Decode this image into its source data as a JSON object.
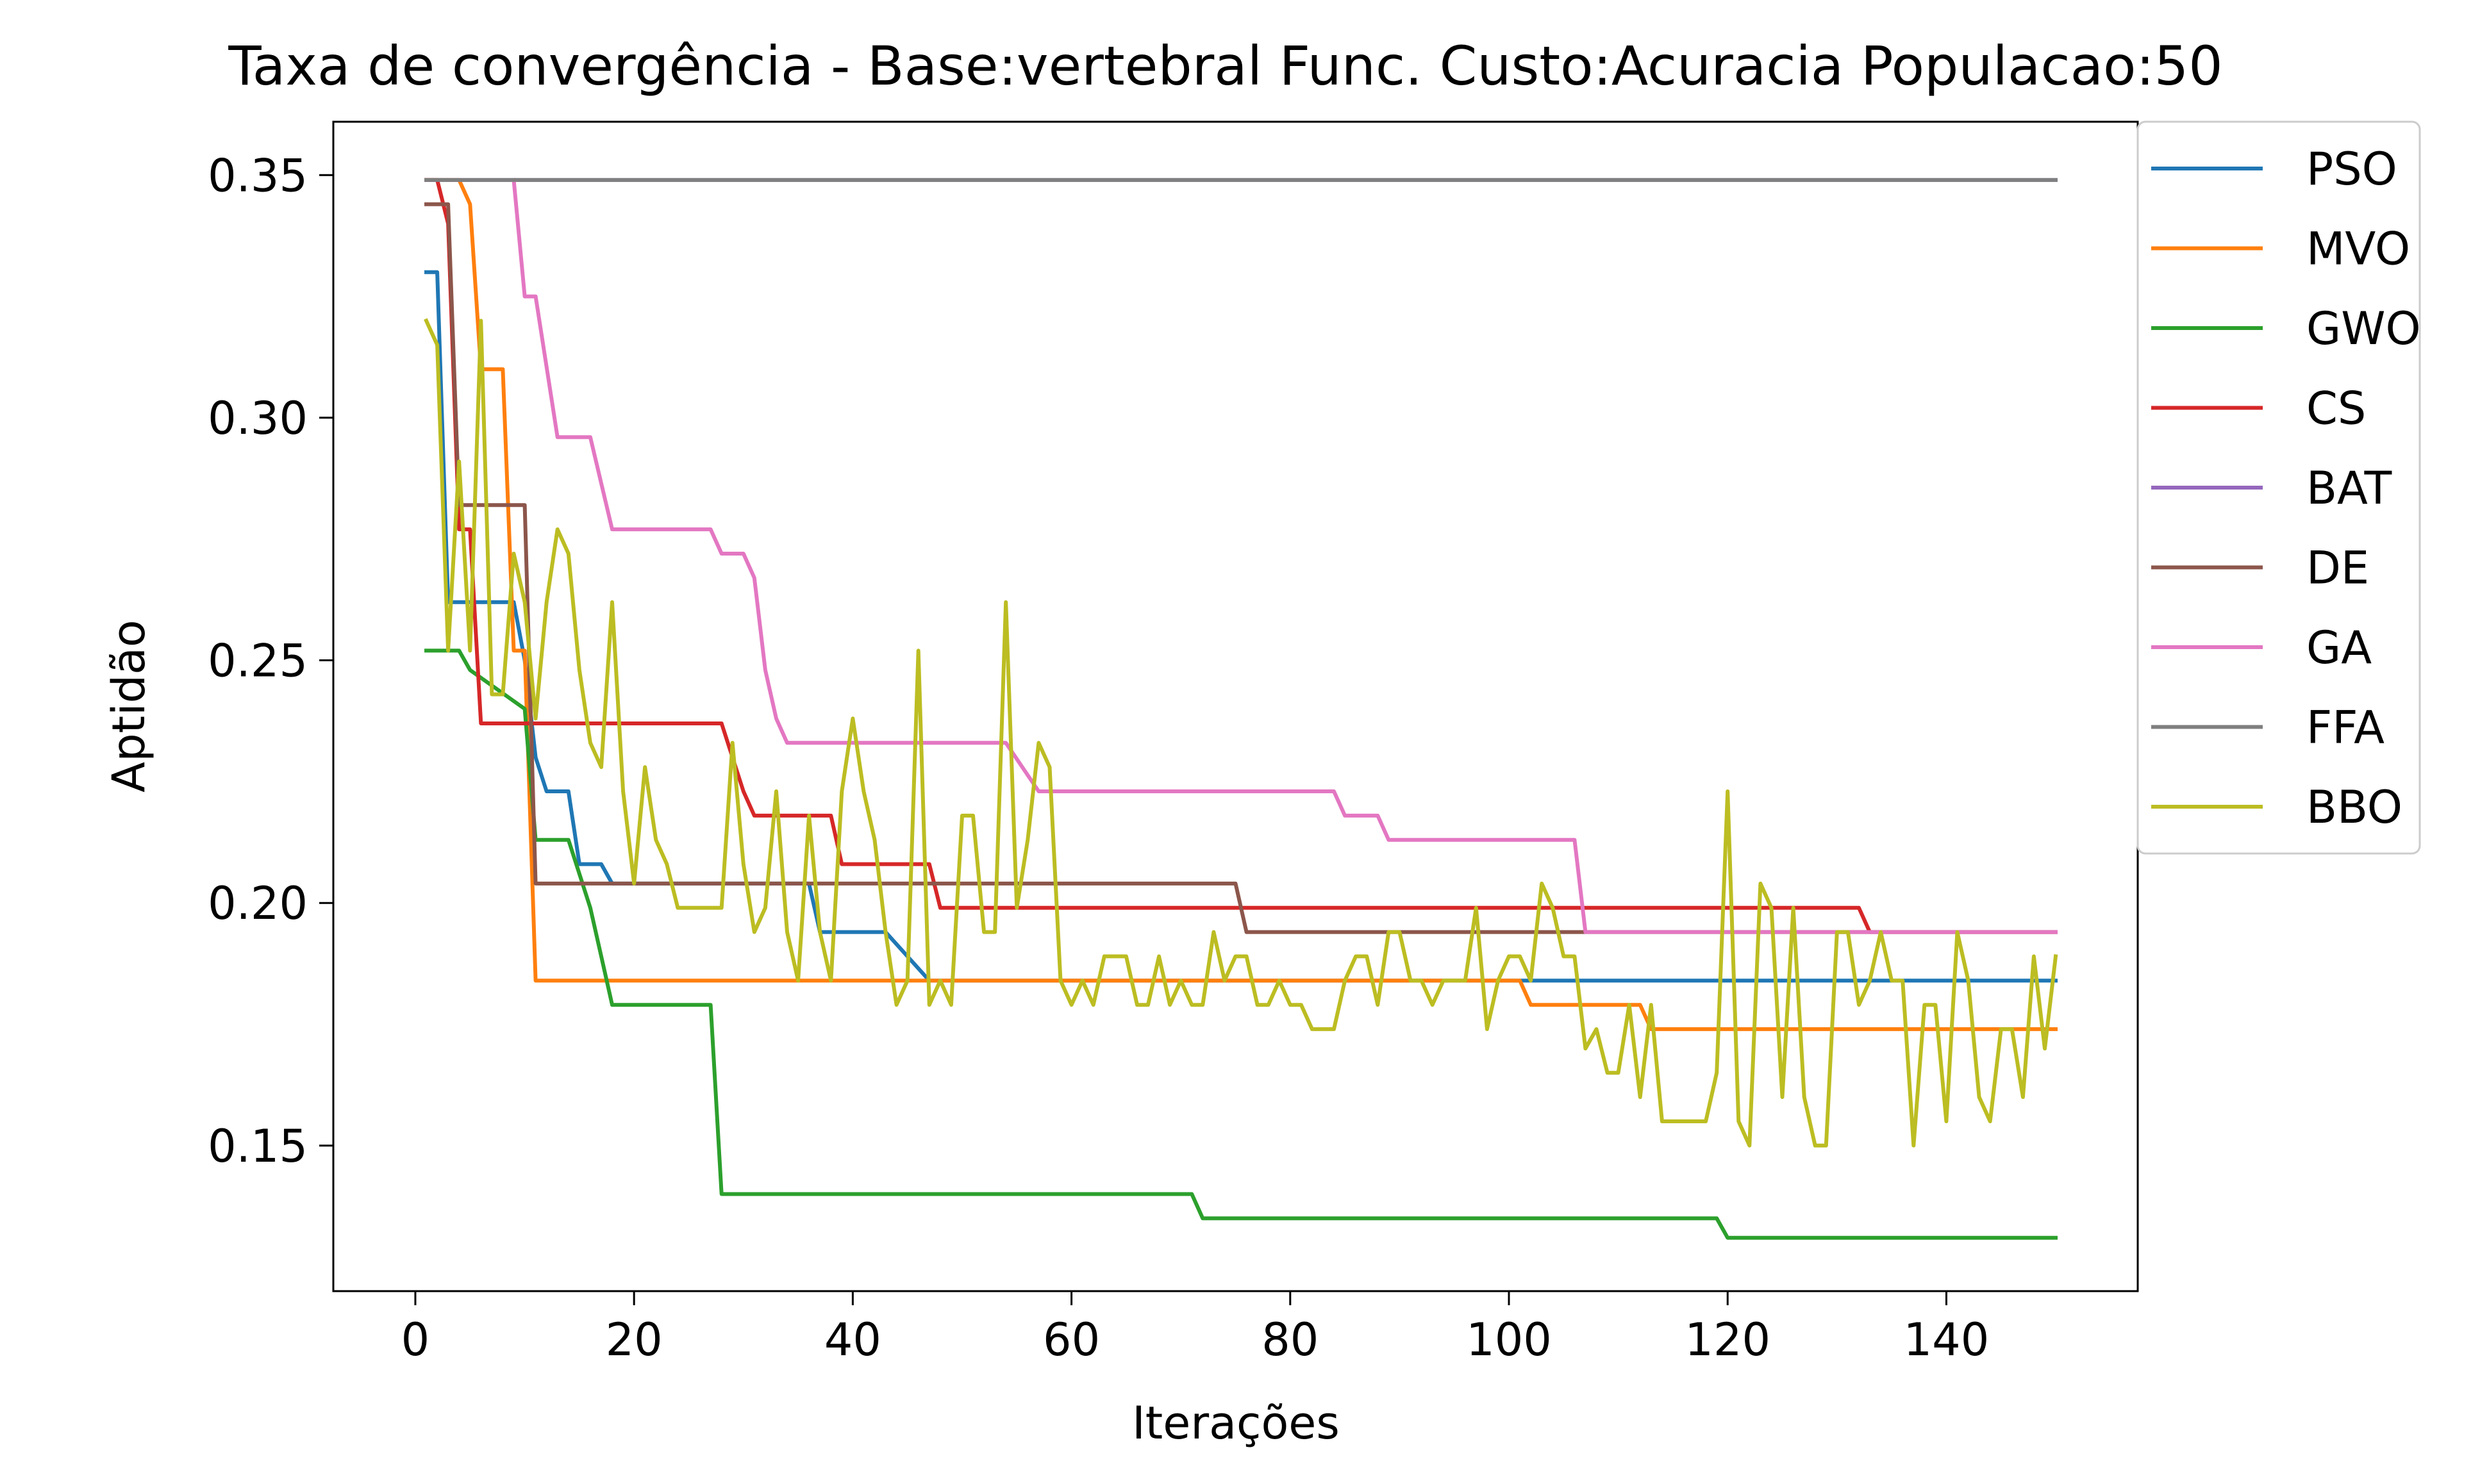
{
  "chart_data": {
    "type": "line",
    "title": "Taxa de convergência - Base:vertebral Func. Custo:Acuracia Populacao:50",
    "xlabel": "Iterações",
    "ylabel": "Aptidão",
    "xlim": [
      -7.5,
      157.5
    ],
    "ylim": [
      0.12,
      0.361
    ],
    "xticks": [
      0,
      20,
      40,
      60,
      80,
      100,
      120,
      140
    ],
    "yticks": [
      0.15,
      0.2,
      0.25,
      0.3,
      0.35
    ],
    "ytick_labels": [
      "0.15",
      "0.20",
      "0.25",
      "0.30",
      "0.35"
    ],
    "grid": false,
    "legend_position": "outside-right-top",
    "series": [
      {
        "name": "PSO",
        "color": "#1f77b4",
        "points": [
          [
            1,
            0.33
          ],
          [
            2,
            0.33
          ],
          [
            3,
            0.262
          ],
          [
            4,
            0.262
          ],
          [
            9,
            0.262
          ],
          [
            10,
            0.25
          ],
          [
            11,
            0.23
          ],
          [
            12,
            0.223
          ],
          [
            14,
            0.223
          ],
          [
            15,
            0.208
          ],
          [
            17,
            0.208
          ],
          [
            18,
            0.204
          ],
          [
            36,
            0.204
          ],
          [
            37,
            0.194
          ],
          [
            43,
            0.194
          ],
          [
            47,
            0.184
          ],
          [
            150,
            0.184
          ]
        ]
      },
      {
        "name": "MVO",
        "color": "#ff7f0e",
        "points": [
          [
            1,
            0.349
          ],
          [
            4,
            0.349
          ],
          [
            5,
            0.344
          ],
          [
            6,
            0.31
          ],
          [
            8,
            0.31
          ],
          [
            9,
            0.252
          ],
          [
            10,
            0.252
          ],
          [
            11,
            0.184
          ],
          [
            101,
            0.184
          ],
          [
            102,
            0.179
          ],
          [
            112,
            0.179
          ],
          [
            113,
            0.174
          ],
          [
            150,
            0.174
          ]
        ]
      },
      {
        "name": "GWO",
        "color": "#2ca02c",
        "points": [
          [
            1,
            0.252
          ],
          [
            4,
            0.252
          ],
          [
            5,
            0.248
          ],
          [
            10,
            0.24
          ],
          [
            11,
            0.213
          ],
          [
            14,
            0.213
          ],
          [
            15,
            0.206
          ],
          [
            16,
            0.199
          ],
          [
            17,
            0.189
          ],
          [
            18,
            0.179
          ],
          [
            27,
            0.179
          ],
          [
            28,
            0.14
          ],
          [
            71,
            0.14
          ],
          [
            72,
            0.135
          ],
          [
            119,
            0.135
          ],
          [
            120,
            0.131
          ],
          [
            150,
            0.131
          ]
        ]
      },
      {
        "name": "CS",
        "color": "#d62728",
        "points": [
          [
            1,
            0.349
          ],
          [
            2,
            0.349
          ],
          [
            3,
            0.34
          ],
          [
            4,
            0.277
          ],
          [
            5,
            0.277
          ],
          [
            6,
            0.237
          ],
          [
            28,
            0.237
          ],
          [
            30,
            0.223
          ],
          [
            31,
            0.218
          ],
          [
            38,
            0.218
          ],
          [
            39,
            0.208
          ],
          [
            47,
            0.208
          ],
          [
            48,
            0.199
          ],
          [
            132,
            0.199
          ],
          [
            133,
            0.194
          ],
          [
            150,
            0.194
          ]
        ]
      },
      {
        "name": "BAT",
        "color": "#9467bd",
        "points": [
          [
            1,
            0.349
          ],
          [
            150,
            0.349
          ]
        ]
      },
      {
        "name": "DE",
        "color": "#8c564b",
        "points": [
          [
            1,
            0.344
          ],
          [
            3,
            0.344
          ],
          [
            4,
            0.282
          ],
          [
            10,
            0.282
          ],
          [
            11,
            0.204
          ],
          [
            75,
            0.204
          ],
          [
            76,
            0.194
          ],
          [
            150,
            0.194
          ]
        ]
      },
      {
        "name": "GA",
        "color": "#e377c2",
        "points": [
          [
            9,
            0.349
          ],
          [
            10,
            0.325
          ],
          [
            11,
            0.325
          ],
          [
            13,
            0.296
          ],
          [
            16,
            0.296
          ],
          [
            18,
            0.277
          ],
          [
            27,
            0.277
          ],
          [
            28,
            0.272
          ],
          [
            30,
            0.272
          ],
          [
            31,
            0.267
          ],
          [
            32,
            0.248
          ],
          [
            33,
            0.238
          ],
          [
            34,
            0.233
          ],
          [
            54,
            0.233
          ],
          [
            57,
            0.223
          ],
          [
            84,
            0.223
          ],
          [
            85,
            0.218
          ],
          [
            88,
            0.218
          ],
          [
            89,
            0.213
          ],
          [
            106,
            0.213
          ],
          [
            107,
            0.194
          ],
          [
            150,
            0.194
          ]
        ]
      },
      {
        "name": "FFA",
        "color": "#7f7f7f",
        "points": [
          [
            1,
            0.349
          ],
          [
            150,
            0.349
          ]
        ]
      },
      {
        "name": "BBO",
        "color": "#bcbd22",
        "points": [
          [
            1,
            0.32
          ],
          [
            2,
            0.315
          ],
          [
            3,
            0.252
          ],
          [
            4,
            0.291
          ],
          [
            5,
            0.252
          ],
          [
            6,
            0.32
          ],
          [
            7,
            0.243
          ],
          [
            8,
            0.243
          ],
          [
            9,
            0.272
          ],
          [
            10,
            0.262
          ],
          [
            11,
            0.238
          ],
          [
            12,
            0.262
          ],
          [
            13,
            0.277
          ],
          [
            14,
            0.272
          ],
          [
            15,
            0.248
          ],
          [
            16,
            0.233
          ],
          [
            17,
            0.228
          ],
          [
            18,
            0.262
          ],
          [
            19,
            0.223
          ],
          [
            20,
            0.204
          ],
          [
            21,
            0.228
          ],
          [
            22,
            0.213
          ],
          [
            23,
            0.208
          ],
          [
            24,
            0.199
          ],
          [
            28,
            0.199
          ],
          [
            29,
            0.233
          ],
          [
            30,
            0.208
          ],
          [
            31,
            0.194
          ],
          [
            32,
            0.199
          ],
          [
            33,
            0.223
          ],
          [
            34,
            0.194
          ],
          [
            35,
            0.184
          ],
          [
            36,
            0.218
          ],
          [
            37,
            0.194
          ],
          [
            38,
            0.184
          ],
          [
            39,
            0.223
          ],
          [
            40,
            0.238
          ],
          [
            41,
            0.223
          ],
          [
            42,
            0.213
          ],
          [
            43,
            0.194
          ],
          [
            44,
            0.179
          ],
          [
            45,
            0.184
          ],
          [
            46,
            0.252
          ],
          [
            47,
            0.179
          ],
          [
            48,
            0.184
          ],
          [
            49,
            0.179
          ],
          [
            50,
            0.218
          ],
          [
            51,
            0.218
          ],
          [
            52,
            0.194
          ],
          [
            53,
            0.194
          ],
          [
            54,
            0.262
          ],
          [
            55,
            0.199
          ],
          [
            56,
            0.213
          ],
          [
            57,
            0.233
          ],
          [
            58,
            0.228
          ],
          [
            59,
            0.184
          ],
          [
            60,
            0.179
          ],
          [
            61,
            0.184
          ],
          [
            62,
            0.179
          ],
          [
            63,
            0.189
          ],
          [
            65,
            0.189
          ],
          [
            66,
            0.179
          ],
          [
            67,
            0.179
          ],
          [
            68,
            0.189
          ],
          [
            69,
            0.179
          ],
          [
            70,
            0.184
          ],
          [
            71,
            0.179
          ],
          [
            72,
            0.179
          ],
          [
            73,
            0.194
          ],
          [
            74,
            0.184
          ],
          [
            75,
            0.189
          ],
          [
            76,
            0.189
          ],
          [
            77,
            0.179
          ],
          [
            78,
            0.179
          ],
          [
            79,
            0.184
          ],
          [
            80,
            0.179
          ],
          [
            81,
            0.179
          ],
          [
            82,
            0.174
          ],
          [
            84,
            0.174
          ],
          [
            85,
            0.184
          ],
          [
            86,
            0.189
          ],
          [
            87,
            0.189
          ],
          [
            88,
            0.179
          ],
          [
            89,
            0.194
          ],
          [
            90,
            0.194
          ],
          [
            91,
            0.184
          ],
          [
            92,
            0.184
          ],
          [
            93,
            0.179
          ],
          [
            94,
            0.184
          ],
          [
            95,
            0.184
          ],
          [
            96,
            0.184
          ],
          [
            97,
            0.199
          ],
          [
            98,
            0.174
          ],
          [
            99,
            0.184
          ],
          [
            100,
            0.189
          ],
          [
            101,
            0.189
          ],
          [
            102,
            0.184
          ],
          [
            103,
            0.204
          ],
          [
            104,
            0.199
          ],
          [
            105,
            0.189
          ],
          [
            106,
            0.189
          ],
          [
            107,
            0.17
          ],
          [
            108,
            0.174
          ],
          [
            109,
            0.165
          ],
          [
            110,
            0.165
          ],
          [
            111,
            0.179
          ],
          [
            112,
            0.16
          ],
          [
            113,
            0.179
          ],
          [
            114,
            0.155
          ],
          [
            118,
            0.155
          ],
          [
            119,
            0.165
          ],
          [
            120,
            0.223
          ],
          [
            121,
            0.155
          ],
          [
            122,
            0.15
          ],
          [
            123,
            0.204
          ],
          [
            124,
            0.199
          ],
          [
            125,
            0.16
          ],
          [
            126,
            0.199
          ],
          [
            127,
            0.16
          ],
          [
            128,
            0.15
          ],
          [
            129,
            0.15
          ],
          [
            130,
            0.194
          ],
          [
            131,
            0.194
          ],
          [
            132,
            0.179
          ],
          [
            133,
            0.184
          ],
          [
            134,
            0.194
          ],
          [
            135,
            0.184
          ],
          [
            136,
            0.184
          ],
          [
            137,
            0.15
          ],
          [
            138,
            0.179
          ],
          [
            139,
            0.179
          ],
          [
            140,
            0.155
          ],
          [
            141,
            0.194
          ],
          [
            142,
            0.184
          ],
          [
            143,
            0.16
          ],
          [
            144,
            0.155
          ],
          [
            145,
            0.174
          ],
          [
            146,
            0.174
          ],
          [
            147,
            0.16
          ],
          [
            148,
            0.189
          ],
          [
            149,
            0.17
          ],
          [
            150,
            0.189
          ]
        ]
      }
    ]
  }
}
